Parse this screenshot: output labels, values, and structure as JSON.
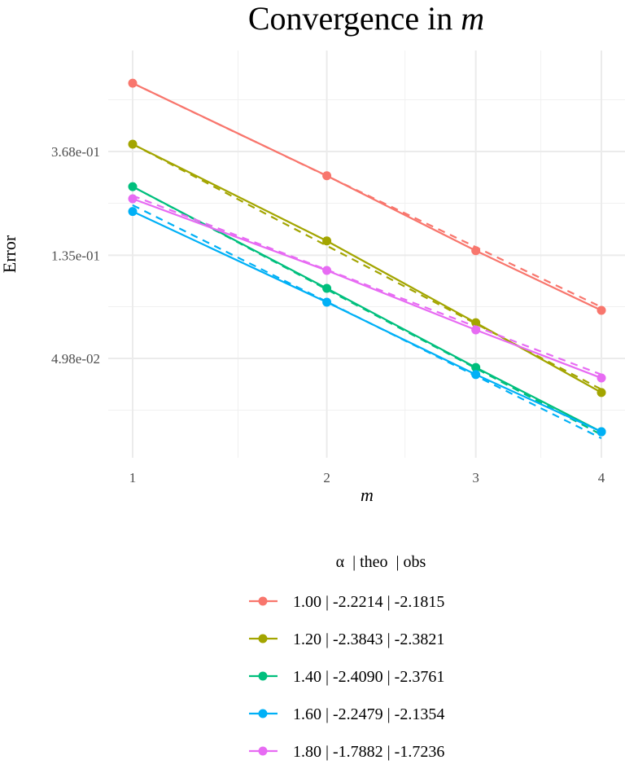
{
  "chart_data": {
    "type": "line",
    "title": "Convergence in",
    "title_italic": "m",
    "xlabel": "m",
    "ylabel": "Error",
    "x_scale": "sqrt",
    "y_scale": "log",
    "x_ticks": [
      1,
      2,
      3,
      4
    ],
    "x_tick_labels": [
      "1",
      "2",
      "3",
      "4"
    ],
    "y_ticks": [
      0.368,
      0.135,
      0.0498
    ],
    "y_tick_labels": [
      "3.68e-01",
      "1.35e-01",
      "4.98e-02"
    ],
    "xlim": [
      0.95,
      4.6
    ],
    "ylim": [
      0.019,
      0.976
    ],
    "grid": true,
    "legend": {
      "title": "α  | theo  | obs",
      "placement": "bottom",
      "entries": [
        "1.00 | -2.2214 | -2.1815",
        "1.20 | -2.3843 | -2.3821",
        "1.40 | -2.4090 | -2.3761",
        "1.60 | -2.2479 | -2.1354",
        "1.80 | -1.7882 | -1.7236"
      ]
    },
    "x": [
      1,
      2,
      3,
      4
    ],
    "series": [
      {
        "name": "1.00 | -2.2214 | -2.1815",
        "color": "#F8766D",
        "values": [
          0.712,
          0.291,
          0.141,
          0.0792
        ],
        "theo": [
          0.712,
          0.0818
        ]
      },
      {
        "name": "1.20 | -2.3843 | -2.3821",
        "color": "#A3A500",
        "values": [
          0.395,
          0.155,
          0.0703,
          0.0358
        ],
        "theo": [
          0.395,
          0.0369
        ]
      },
      {
        "name": "1.40 | -2.4090 | -2.3761",
        "color": "#00BF7D",
        "values": [
          0.262,
          0.098,
          0.0456,
          0.0245
        ],
        "theo": [
          0.262,
          0.0238
        ]
      },
      {
        "name": "1.60 | -2.2479 | -2.1354",
        "color": "#00B0F6",
        "values": [
          0.206,
          0.0857,
          0.0426,
          0.0245
        ],
        "theo": [
          0.219,
          0.023
        ]
      },
      {
        "name": "1.80 | -1.7882 | -1.7236",
        "color": "#E76BF3",
        "values": [
          0.233,
          0.1165,
          0.0656,
          0.0412
        ],
        "theo": [
          0.24,
          0.0426
        ]
      }
    ]
  }
}
